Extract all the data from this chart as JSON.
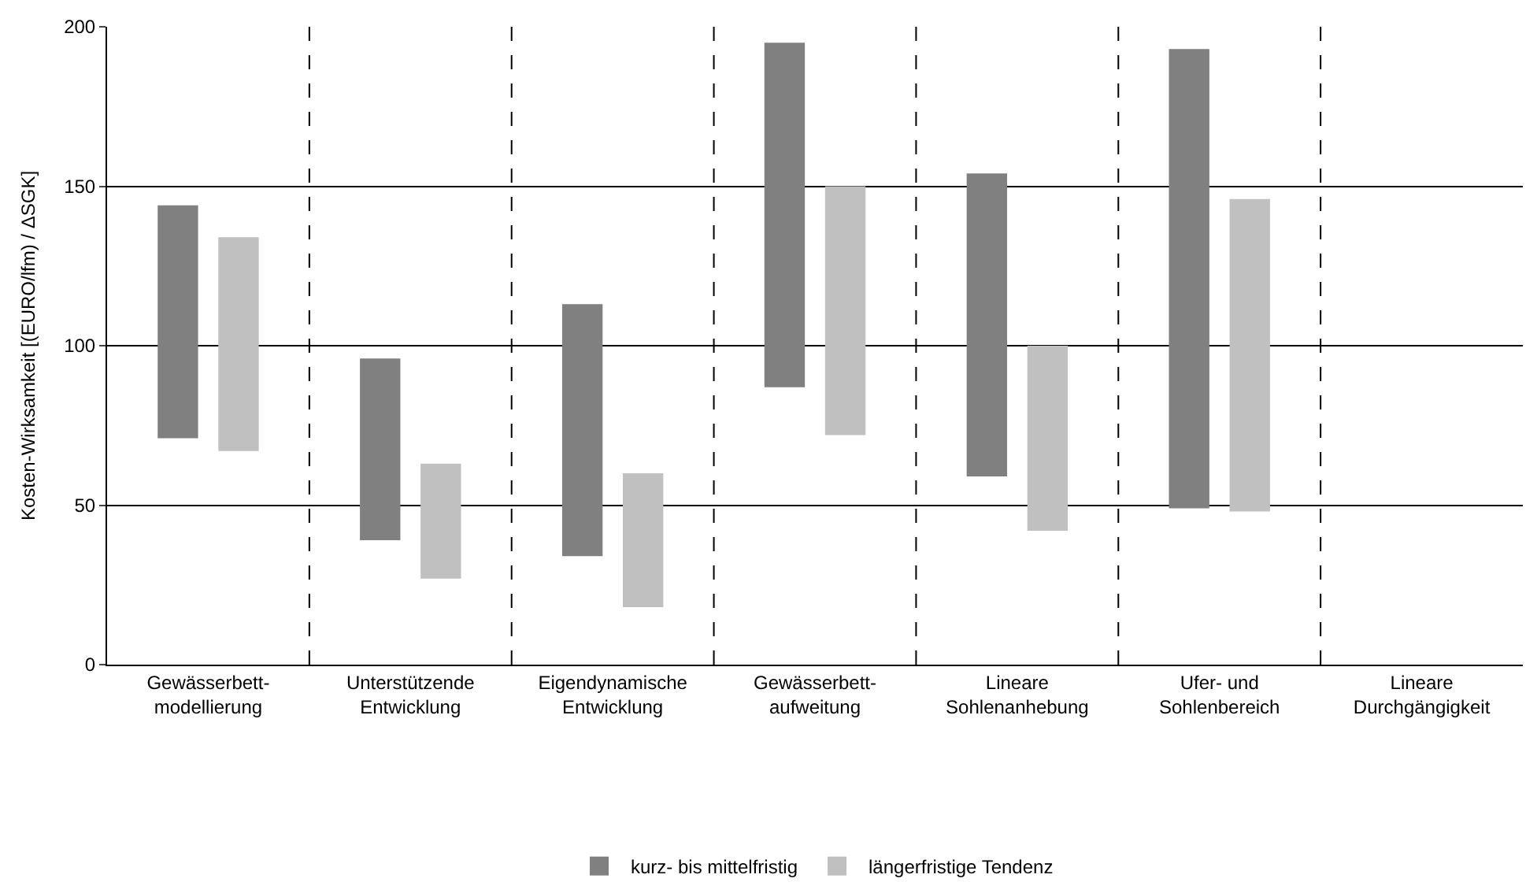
{
  "chart_data": {
    "type": "bar",
    "ylabel": "Kosten-Wirksamkeit [(EURO/lfm) / ΔSGK]",
    "categories": [
      "Gewässerbett-\nmodellierung",
      "Unterstützende\nEntwicklung",
      "Eigendynamische\nEntwicklung",
      "Gewässerbett-\naufweitung",
      "Lineare\nSohlenanhebung",
      "Ufer- und\nSohlenbereich",
      "Lineare\nDurchgängigkeit"
    ],
    "series": [
      {
        "name": "kurz- bis mittelfristig",
        "color": "#808080",
        "base": [
          71,
          39,
          34,
          87,
          59,
          49,
          null
        ],
        "values": [
          73,
          57,
          79,
          108,
          95,
          144,
          null
        ]
      },
      {
        "name": "längerfristige Tendenz",
        "color": "#c0c0c0",
        "base": [
          67,
          27,
          18,
          72,
          42,
          48,
          null
        ],
        "values": [
          67,
          36,
          42,
          78,
          58,
          98,
          null
        ]
      }
    ],
    "ylim": [
      0,
      200
    ],
    "yticks": [
      0,
      50,
      100,
      150,
      200
    ],
    "grid": true,
    "legend": "bottom"
  }
}
